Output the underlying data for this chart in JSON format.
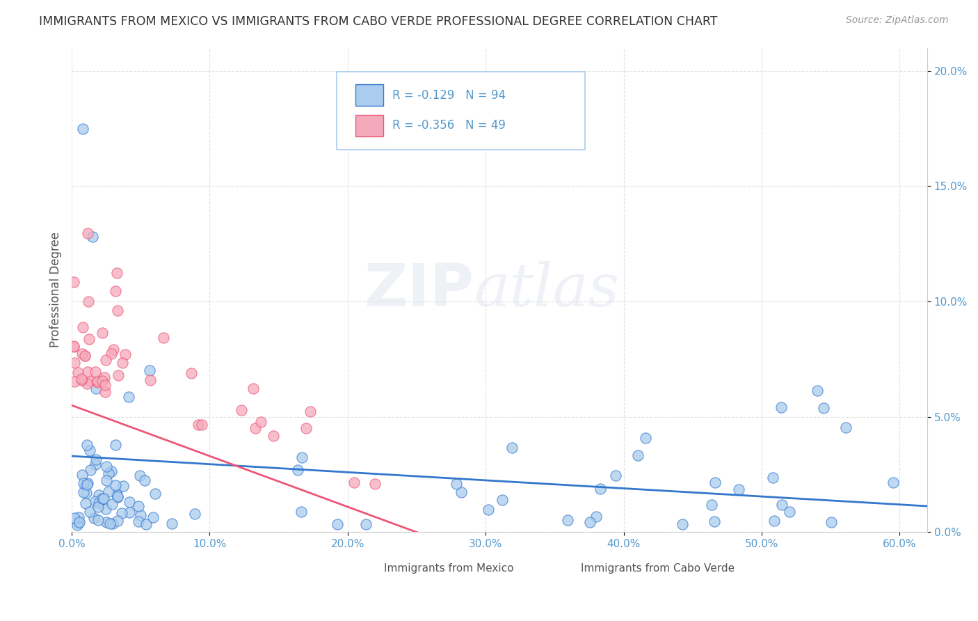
{
  "title": "IMMIGRANTS FROM MEXICO VS IMMIGRANTS FROM CABO VERDE PROFESSIONAL DEGREE CORRELATION CHART",
  "source": "Source: ZipAtlas.com",
  "ylabel": "Professional Degree",
  "xlim": [
    0.0,
    0.62
  ],
  "ylim": [
    0.0,
    0.21
  ],
  "xticks": [
    0.0,
    0.1,
    0.2,
    0.3,
    0.4,
    0.5,
    0.6
  ],
  "xtick_labels": [
    "0.0%",
    "10.0%",
    "20.0%",
    "30.0%",
    "40.0%",
    "50.0%",
    "60.0%"
  ],
  "ytick_labels": [
    "0.0%",
    "5.0%",
    "10.0%",
    "15.0%",
    "20.0%"
  ],
  "yticks": [
    0.0,
    0.05,
    0.1,
    0.15,
    0.2
  ],
  "mexico_color": "#aaccee",
  "cabo_verde_color": "#f5aabb",
  "regression_mexico_color": "#3377cc",
  "regression_cabo_verde_color": "#ee5577",
  "R_mexico": -0.129,
  "N_mexico": 94,
  "R_cabo": -0.356,
  "N_cabo": 49,
  "watermark_zip": "ZIP",
  "watermark_atlas": "atlas",
  "background_color": "#ffffff",
  "tick_color": "#5599cc",
  "grid_color": "#dddddd",
  "ylabel_color": "#555555",
  "title_color": "#333333",
  "source_color": "#999999"
}
